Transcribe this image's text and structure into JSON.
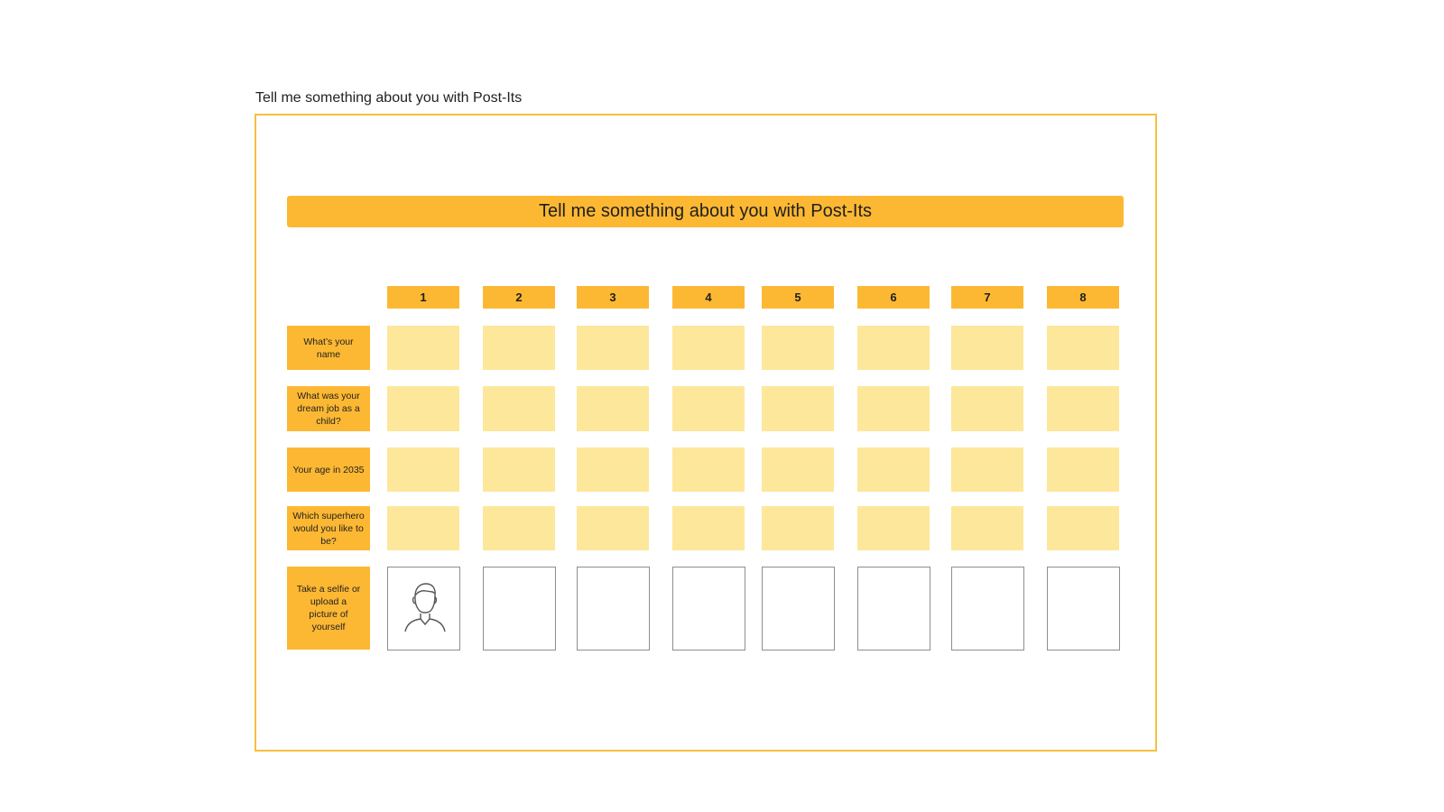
{
  "frame": {
    "label": "Tell me something about you with Post-Its"
  },
  "board": {
    "title": "Tell me something about you with Post-Its",
    "columns": [
      "1",
      "2",
      "3",
      "4",
      "5",
      "6",
      "7",
      "8"
    ],
    "rows": [
      "What’s your name",
      "What was your dream job as a child?",
      "Your age in 2035",
      "Which superhero would you like to be?"
    ],
    "photo_row": "Take a selfie or upload a picture of yourself",
    "photo_icon": "person-avatar-icon"
  },
  "colors": {
    "accent": "#fdb833",
    "postit": "#fde79a",
    "frame_border": "#f6c03d"
  }
}
